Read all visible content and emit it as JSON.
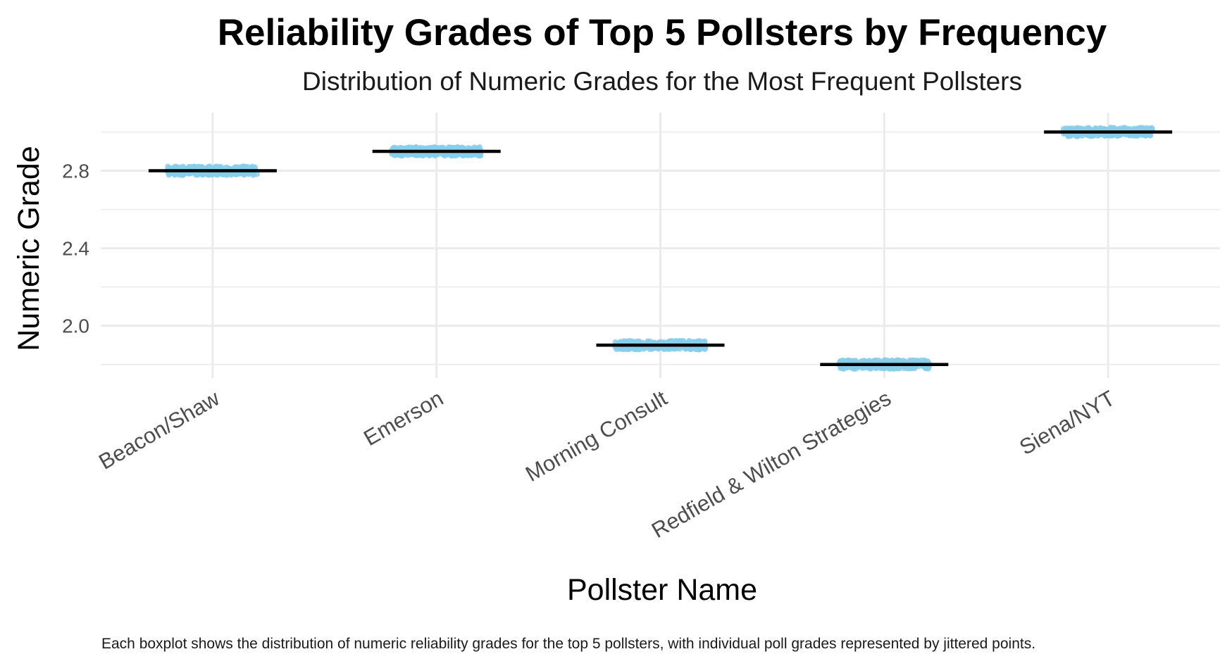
{
  "chart_data": {
    "type": "boxplot",
    "title": "Reliability Grades of Top 5 Pollsters by Frequency",
    "subtitle": "Distribution of Numeric Grades for the Most Frequent Pollsters",
    "xlabel": "Pollster Name",
    "ylabel": "Numeric Grade",
    "caption": "Each boxplot shows the distribution of numeric reliability grades for the top 5 pollsters, with individual poll grades represented by jittered points.",
    "categories": [
      "Beacon/Shaw",
      "Emerson",
      "Morning Consult",
      "Redfield & Wilton Strategies",
      "Siena/NYT"
    ],
    "values": [
      2.8,
      2.9,
      1.9,
      1.8,
      3.0
    ],
    "ylim": [
      1.73,
      3.1
    ],
    "yticks": [
      2.0,
      2.4,
      2.8
    ],
    "yticks_text": [
      "2.0",
      "2.4",
      "2.8"
    ],
    "grid": true,
    "colors": {
      "points": "#87CEEB",
      "median": "#000000",
      "grid": "#ebebeb"
    }
  }
}
